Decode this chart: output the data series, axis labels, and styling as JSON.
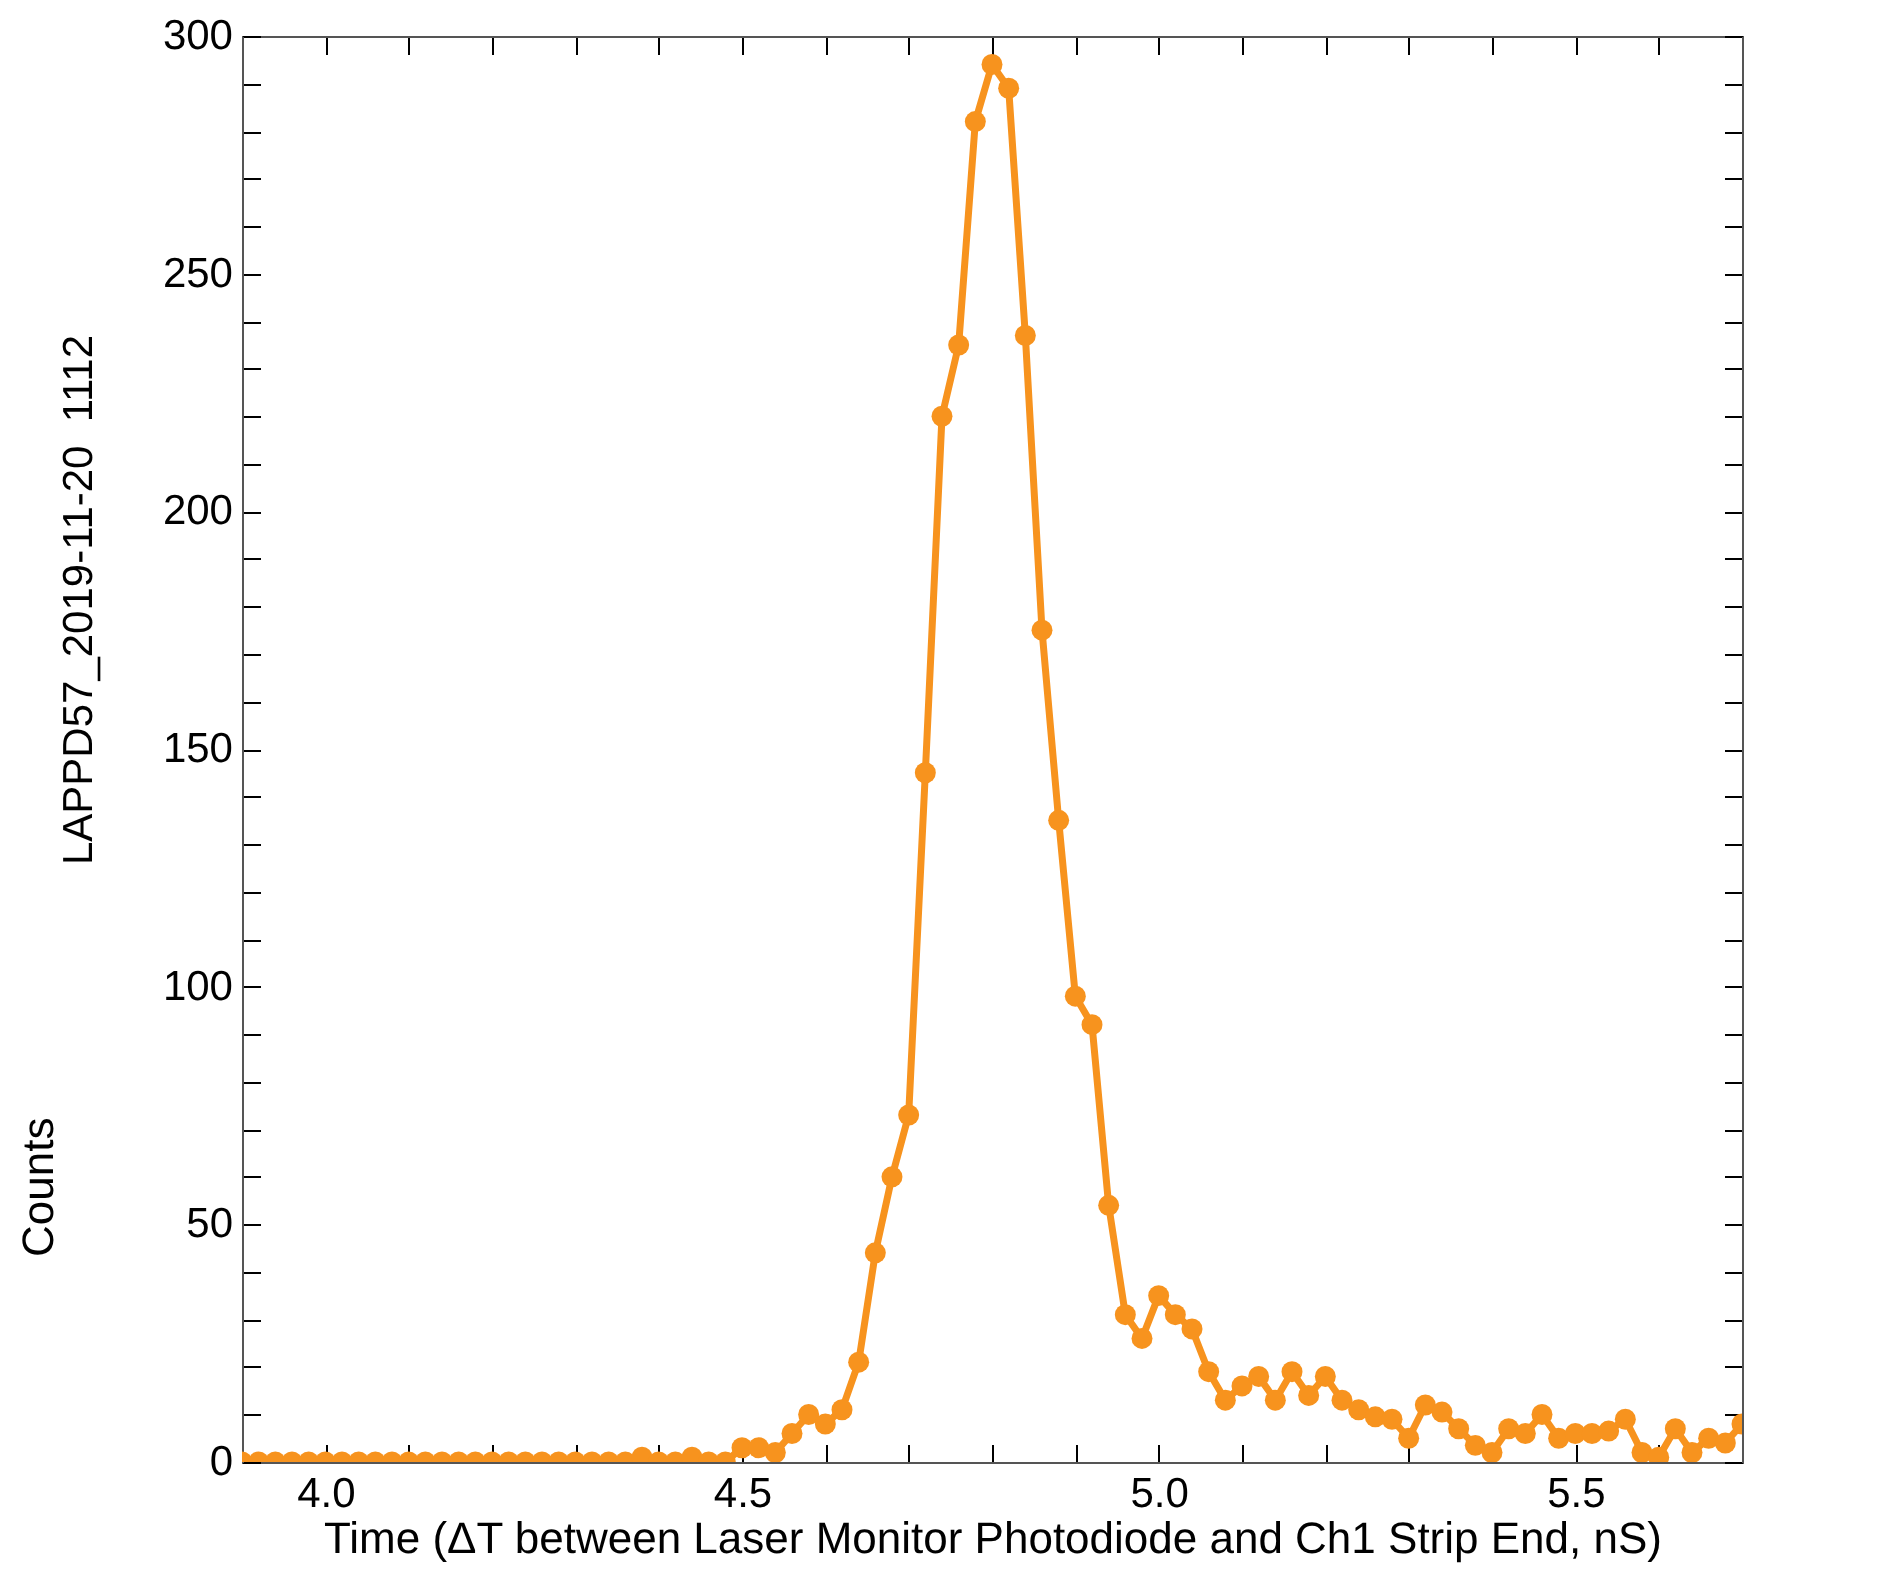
{
  "chart_data": {
    "type": "line",
    "xlabel": "Time (ΔT between Laser Monitor Photodiode and Ch1 Strip End, nS)",
    "ylabel": "Counts",
    "annotations": [
      "LAPPD57_2019-11-20  1112"
    ],
    "x": [
      3.9,
      3.92,
      3.94,
      3.96,
      3.98,
      4.0,
      4.02,
      4.04,
      4.06,
      4.08,
      4.1,
      4.12,
      4.14,
      4.16,
      4.18,
      4.2,
      4.22,
      4.24,
      4.26,
      4.28,
      4.3,
      4.32,
      4.34,
      4.36,
      4.38,
      4.4,
      4.42,
      4.44,
      4.46,
      4.48,
      4.5,
      4.52,
      4.54,
      4.56,
      4.58,
      4.6,
      4.62,
      4.64,
      4.66,
      4.68,
      4.7,
      4.72,
      4.74,
      4.76,
      4.78,
      4.8,
      4.82,
      4.84,
      4.86,
      4.88,
      4.9,
      4.92,
      4.94,
      4.96,
      4.98,
      5.0,
      5.02,
      5.04,
      5.06,
      5.08,
      5.1,
      5.12,
      5.14,
      5.16,
      5.18,
      5.2,
      5.22,
      5.24,
      5.26,
      5.28,
      5.3,
      5.32,
      5.34,
      5.36,
      5.38,
      5.4,
      5.42,
      5.44,
      5.46,
      5.48,
      5.5,
      5.52,
      5.54,
      5.56,
      5.58,
      5.6,
      5.62,
      5.64,
      5.66,
      5.68,
      5.7
    ],
    "series": [
      {
        "color": "#f7931e",
        "values": [
          0,
          0,
          0,
          0,
          0,
          0,
          0,
          0,
          0,
          0,
          0,
          0,
          0,
          0,
          0,
          0,
          0,
          0,
          0,
          0,
          0,
          0,
          0,
          0,
          1,
          0,
          0,
          1,
          0,
          0,
          3,
          3,
          2,
          6,
          10,
          8,
          11,
          21,
          44,
          60,
          73,
          145,
          220,
          235,
          282,
          294,
          289,
          237,
          175,
          135,
          98,
          92,
          54,
          31,
          26,
          35,
          31,
          28,
          19,
          13,
          16,
          18,
          13,
          19,
          14,
          18,
          13,
          11,
          9.5,
          9,
          5,
          12,
          10.5,
          7,
          3.5,
          2,
          7,
          6,
          10,
          5,
          6,
          6,
          6.5,
          9,
          2,
          1,
          7,
          2,
          5,
          4,
          8
        ]
      }
    ],
    "xlim": [
      3.9,
      5.7
    ],
    "xticks": [
      {
        "value": 3.9,
        "label": null
      },
      {
        "value": 4.0,
        "label": "4.0"
      },
      {
        "value": 4.1,
        "label": null
      },
      {
        "value": 4.2,
        "label": null
      },
      {
        "value": 4.3,
        "label": null
      },
      {
        "value": 4.4,
        "label": null
      },
      {
        "value": 4.5,
        "label": "4.5"
      },
      {
        "value": 4.6,
        "label": null
      },
      {
        "value": 4.7,
        "label": null
      },
      {
        "value": 4.8,
        "label": null
      },
      {
        "value": 4.9,
        "label": null
      },
      {
        "value": 5.0,
        "label": "5.0"
      },
      {
        "value": 5.1,
        "label": null
      },
      {
        "value": 5.2,
        "label": null
      },
      {
        "value": 5.3,
        "label": null
      },
      {
        "value": 5.4,
        "label": null
      },
      {
        "value": 5.5,
        "label": "5.5"
      },
      {
        "value": 5.6,
        "label": null
      }
    ],
    "ylim": [
      0,
      300
    ],
    "yticks": [
      0,
      {
        "value": 10,
        "label": null
      },
      {
        "value": 20,
        "label": null
      },
      {
        "value": 30,
        "label": null
      },
      {
        "value": 40,
        "label": null
      },
      50,
      {
        "value": 60,
        "label": null
      },
      {
        "value": 70,
        "label": null
      },
      {
        "value": 80,
        "label": null
      },
      {
        "value": 90,
        "label": null
      },
      100,
      {
        "value": 110,
        "label": null
      },
      {
        "value": 120,
        "label": null
      },
      {
        "value": 130,
        "label": null
      },
      {
        "value": 140,
        "label": null
      },
      150,
      {
        "value": 160,
        "label": null
      },
      {
        "value": 170,
        "label": null
      },
      {
        "value": 180,
        "label": null
      },
      {
        "value": 190,
        "label": null
      },
      200,
      {
        "value": 210,
        "label": null
      },
      {
        "value": 220,
        "label": null
      },
      {
        "value": 230,
        "label": null
      },
      {
        "value": 240,
        "label": null
      },
      250,
      {
        "value": 260,
        "label": null
      },
      {
        "value": 270,
        "label": null
      },
      {
        "value": 280,
        "label": null
      },
      {
        "value": 290,
        "label": null
      },
      300
    ],
    "grid": false,
    "marker": "circle",
    "line_style": "solid"
  }
}
